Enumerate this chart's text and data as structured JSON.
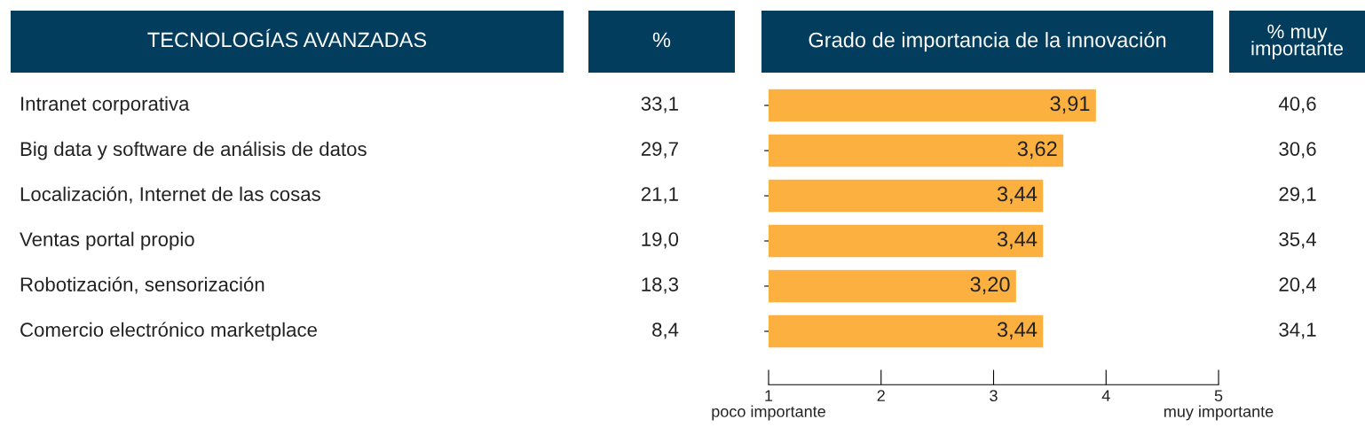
{
  "chart_data": [
    {
      "type": "other",
      "ylabel": "TECNOLOGÍAS AVANZADAS",
      "title": "%",
      "categories": [
        "Intranet corporativa",
        "Big data y software de análisis de datos",
        "Localización, Internet de las cosas",
        "Ventas portal propio",
        "Robotización, sensorización",
        "Comercio electrónico marketplace"
      ],
      "values": [
        33.1,
        29.7,
        21.1,
        19.0,
        18.3,
        8.4
      ],
      "value_labels": [
        "33,1",
        "29,7",
        "21,1",
        "19,0",
        "18,3",
        "8,4"
      ]
    },
    {
      "type": "bar",
      "orientation": "horizontal",
      "title": "Grado de importancia de la innovación",
      "categories": [
        null,
        null,
        null,
        null,
        null,
        null
      ],
      "values": [
        3.91,
        3.62,
        3.44,
        3.44,
        3.2,
        3.44
      ],
      "value_labels": [
        "3,91",
        "3,62",
        "3,44",
        "3,44",
        "3,20",
        "3,44"
      ],
      "color": "#fbb040",
      "xlim": [
        1,
        5
      ],
      "xticks": [
        1,
        2,
        3,
        4,
        5
      ],
      "annotations": [
        "poco importante",
        "muy importante"
      ]
    },
    {
      "type": "other",
      "title": "% muy\nimportante",
      "values": [
        40.6,
        30.6,
        29.1,
        35.4,
        20.4,
        34.1
      ],
      "value_labels": [
        "40,6",
        "30,6",
        "29,1",
        "35,4",
        "20,4",
        "34,1"
      ]
    }
  ]
}
